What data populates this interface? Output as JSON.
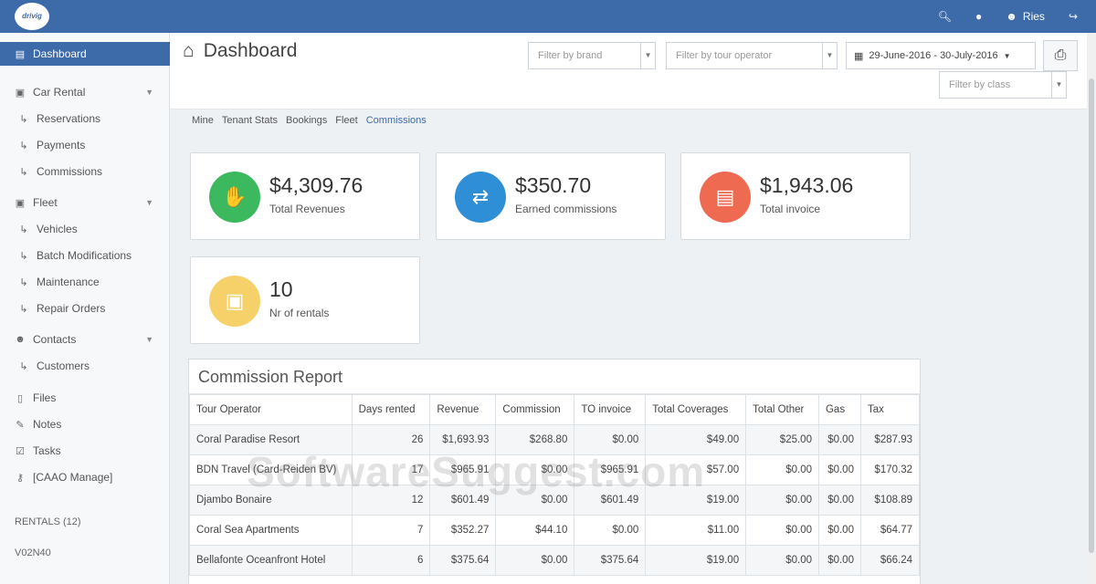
{
  "app": {
    "logo_text": "drivig"
  },
  "topnav": {
    "user_label": "Ries"
  },
  "sidebar": {
    "dashboard": "Dashboard",
    "car_rental": "Car Rental",
    "reservations": "Reservations",
    "payments": "Payments",
    "commissions": "Commissions",
    "fleet": "Fleet",
    "vehicles": "Vehicles",
    "batch_modifications": "Batch Modifications",
    "maintenance": "Maintenance",
    "repair_orders": "Repair Orders",
    "contacts": "Contacts",
    "customers": "Customers",
    "files": "Files",
    "notes": "Notes",
    "tasks": "Tasks",
    "caao_manage": "[CAAO Manage]",
    "rentals_count": "RENTALS (12)",
    "version": "V02N40"
  },
  "header": {
    "title": "Dashboard",
    "filter_brand": "Filter by brand",
    "filter_tour_operator": "Filter by tour operator",
    "date_range": "29-June-2016 - 30-July-2016",
    "filter_class": "Filter by class"
  },
  "tabs": [
    "Mine",
    "Tenant Stats",
    "Bookings",
    "Fleet",
    "Commissions"
  ],
  "cards": [
    {
      "value": "$4,309.76",
      "label": "Total Revenues",
      "color": "#3cb95e",
      "icon": "thumbs-up-icon"
    },
    {
      "value": "$350.70",
      "label": "Earned commissions",
      "color": "#2f8fd6",
      "icon": "exchange-icon"
    },
    {
      "value": "$1,943.06",
      "label": "Total invoice",
      "color": "#ee6a50",
      "icon": "file-icon"
    },
    {
      "value": "10",
      "label": "Nr of rentals",
      "color": "#f6d16a",
      "icon": "car-icon"
    }
  ],
  "report": {
    "title": "Commission Report",
    "columns": [
      "Tour Operator",
      "Days rented",
      "Revenue",
      "Commission",
      "TO invoice",
      "Total Coverages",
      "Total Other",
      "Gas",
      "Tax"
    ],
    "rows": [
      [
        "Coral Paradise Resort",
        "26",
        "$1,693.93",
        "$268.80",
        "$0.00",
        "$49.00",
        "$25.00",
        "$0.00",
        "$287.93"
      ],
      [
        "BDN Travel (Card-Reiden BV)",
        "17",
        "$965.91",
        "$0.00",
        "$965.91",
        "$57.00",
        "$0.00",
        "$0.00",
        "$170.32"
      ],
      [
        "Djambo Bonaire",
        "12",
        "$601.49",
        "$0.00",
        "$601.49",
        "$19.00",
        "$0.00",
        "$0.00",
        "$108.89"
      ],
      [
        "Coral Sea Apartments",
        "7",
        "$352.27",
        "$44.10",
        "$0.00",
        "$11.00",
        "$0.00",
        "$0.00",
        "$64.77"
      ],
      [
        "Bellafonte Oceanfront Hotel",
        "6",
        "$375.64",
        "$0.00",
        "$375.64",
        "$19.00",
        "$0.00",
        "$0.00",
        "$66.24"
      ]
    ]
  },
  "watermark": "SoftwareSuggest.com"
}
